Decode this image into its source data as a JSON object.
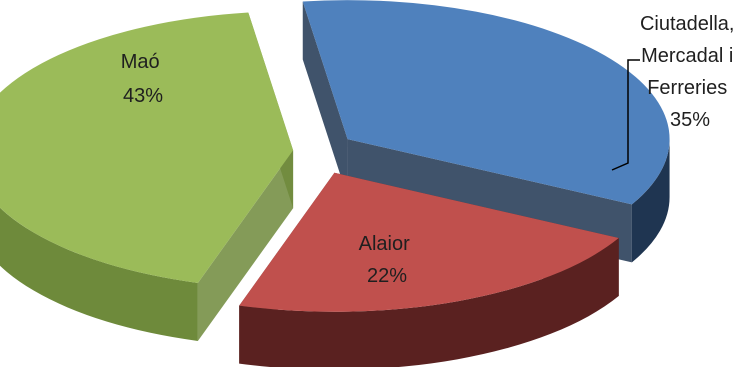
{
  "chart_data": {
    "type": "pie",
    "title": "",
    "style": "3d-exploded",
    "slices": [
      {
        "name": "Ciutadella, Mercadal i Ferreries",
        "label_lines": [
          "Ciutadella,",
          "Mercadal i",
          "Ferreries",
          "35%"
        ],
        "value": 35,
        "top_color": "#4f81bd",
        "side_color": "#1f3551"
      },
      {
        "name": "Alaior",
        "label_lines": [
          "Alaior",
          "22%"
        ],
        "value": 22,
        "top_color": "#c0504d",
        "side_color": "#5a2120"
      },
      {
        "name": "Maó",
        "label_lines": [
          "Maó",
          "43%"
        ],
        "value": 43,
        "top_color": "#9bbb59",
        "side_color": "#6e8a3b"
      }
    ]
  }
}
